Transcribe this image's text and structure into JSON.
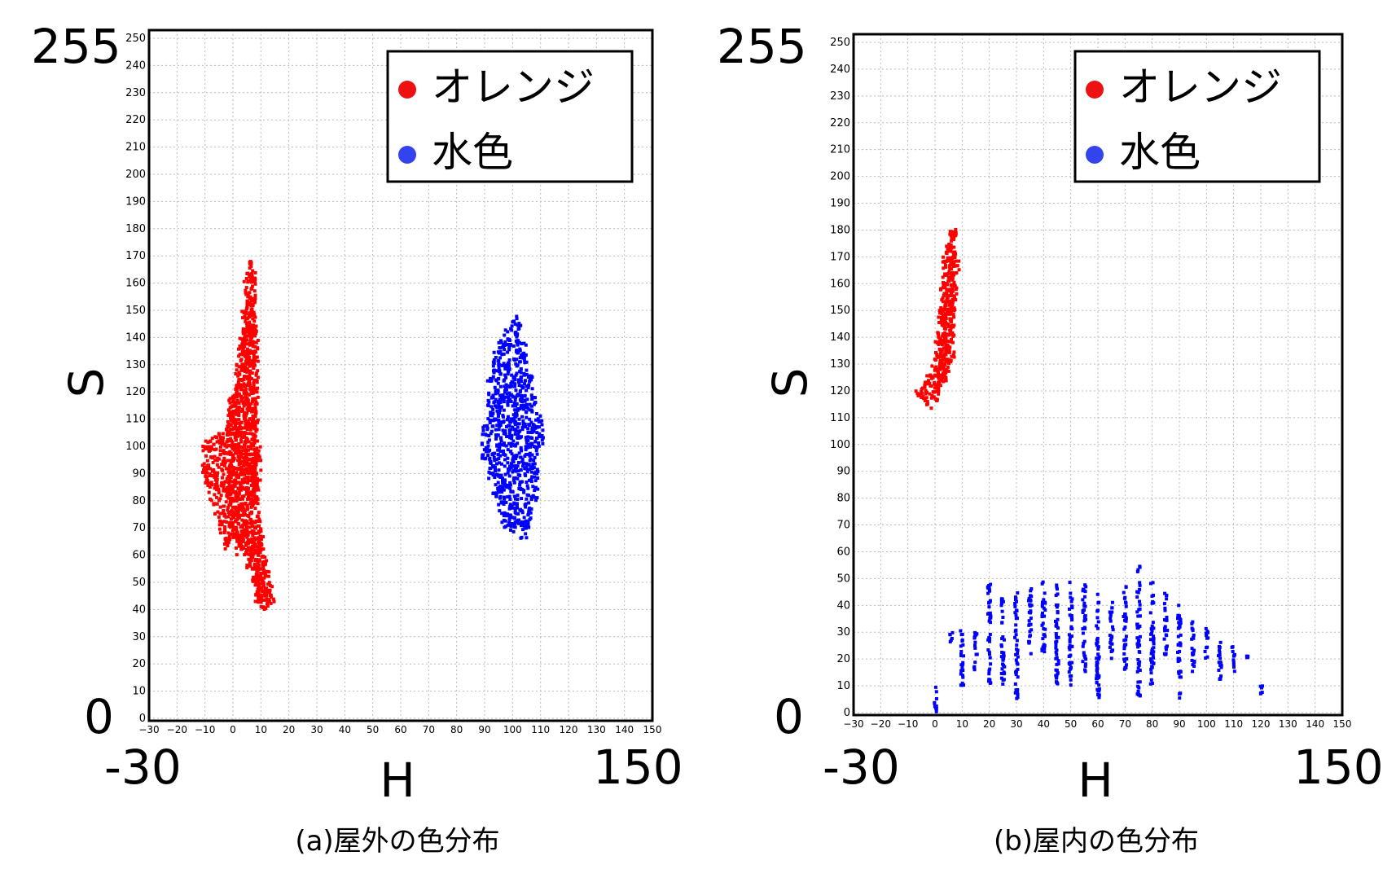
{
  "legend": {
    "orange": "オレンジ",
    "cyan": "水色"
  },
  "colors": {
    "orange": "#ff0000",
    "cyan": "#0000ff",
    "legend_orange": "#ee1111",
    "legend_cyan": "#3344ee"
  },
  "axis": {
    "x_label": "H",
    "y_label": "S",
    "x_min_label": "-30",
    "x_max_label": "150",
    "y_min_label": "0",
    "y_max_label": "255",
    "x_ticks": [
      -30,
      -20,
      -10,
      0,
      10,
      20,
      30,
      40,
      50,
      60,
      70,
      80,
      90,
      100,
      110,
      120,
      130,
      140,
      150
    ],
    "y_ticks": [
      0,
      10,
      20,
      30,
      40,
      50,
      60,
      70,
      80,
      90,
      100,
      110,
      120,
      130,
      140,
      150,
      160,
      170,
      180,
      190,
      200,
      210,
      220,
      230,
      240,
      250
    ],
    "xlim": [
      -30,
      150
    ],
    "ylim": [
      0,
      255
    ]
  },
  "chart_data": [
    {
      "type": "scatter",
      "caption": "(a)屋外の色分布",
      "xlabel": "H",
      "ylabel": "S",
      "xlim": [
        -30,
        150
      ],
      "ylim": [
        0,
        255
      ],
      "grid": true,
      "legend_position": "top-right",
      "series": [
        {
          "name": "オレンジ",
          "color": "#ff0000",
          "x": [
            -10,
            -8,
            -6,
            -4,
            -2,
            -1,
            0,
            1,
            2,
            3,
            4,
            5,
            6,
            7,
            8,
            9,
            10,
            11,
            12,
            13,
            14
          ],
          "y_min": [
            85,
            80,
            75,
            68,
            62,
            70,
            72,
            65,
            60,
            62,
            66,
            60,
            55,
            50,
            45,
            42,
            40,
            40,
            40,
            41,
            42
          ],
          "y_max": [
            102,
            103,
            104,
            105,
            108,
            118,
            120,
            125,
            132,
            140,
            150,
            162,
            168,
            165,
            145,
            100,
            70,
            60,
            55,
            50,
            45
          ]
        },
        {
          "name": "水色",
          "color": "#0000ff",
          "x": [
            90,
            92,
            94,
            96,
            98,
            100,
            102,
            104,
            106,
            108,
            110
          ],
          "y_min": [
            95,
            88,
            80,
            72,
            70,
            68,
            70,
            66,
            70,
            80,
            100
          ],
          "y_max": [
            108,
            125,
            135,
            140,
            143,
            146,
            149,
            138,
            128,
            118,
            112
          ]
        }
      ]
    },
    {
      "type": "scatter",
      "caption": "(b)屋内の色分布",
      "xlabel": "H",
      "ylabel": "S",
      "xlim": [
        -30,
        150
      ],
      "ylim": [
        0,
        255
      ],
      "grid": true,
      "legend_position": "top-right",
      "series": [
        {
          "name": "オレンジ",
          "color": "#ff0000",
          "x": [
            -6,
            -4,
            -2,
            0,
            1,
            2,
            3,
            4,
            5,
            6,
            7,
            8
          ],
          "y_min": [
            118,
            115,
            113,
            116,
            118,
            120,
            122,
            125,
            128,
            130,
            150,
            165
          ],
          "y_max": [
            122,
            124,
            126,
            130,
            140,
            150,
            160,
            170,
            175,
            180,
            181,
            172
          ]
        },
        {
          "name": "水色",
          "color": "#0000ff",
          "x": [
            0,
            6,
            10,
            15,
            20,
            25,
            30,
            35,
            40,
            45,
            50,
            55,
            60,
            65,
            70,
            75,
            80,
            85,
            90,
            95,
            100,
            105,
            110,
            115,
            120
          ],
          "y_min": [
            0,
            25,
            10,
            15,
            10,
            10,
            5,
            20,
            20,
            10,
            10,
            15,
            5,
            20,
            15,
            5,
            10,
            20,
            5,
            15,
            20,
            10,
            15,
            20,
            5
          ],
          "y_max": [
            10,
            30,
            32,
            30,
            48,
            43,
            45,
            47,
            49,
            50,
            49,
            48,
            45,
            42,
            48,
            55,
            50,
            45,
            40,
            35,
            32,
            28,
            25,
            22,
            10
          ]
        }
      ]
    }
  ]
}
